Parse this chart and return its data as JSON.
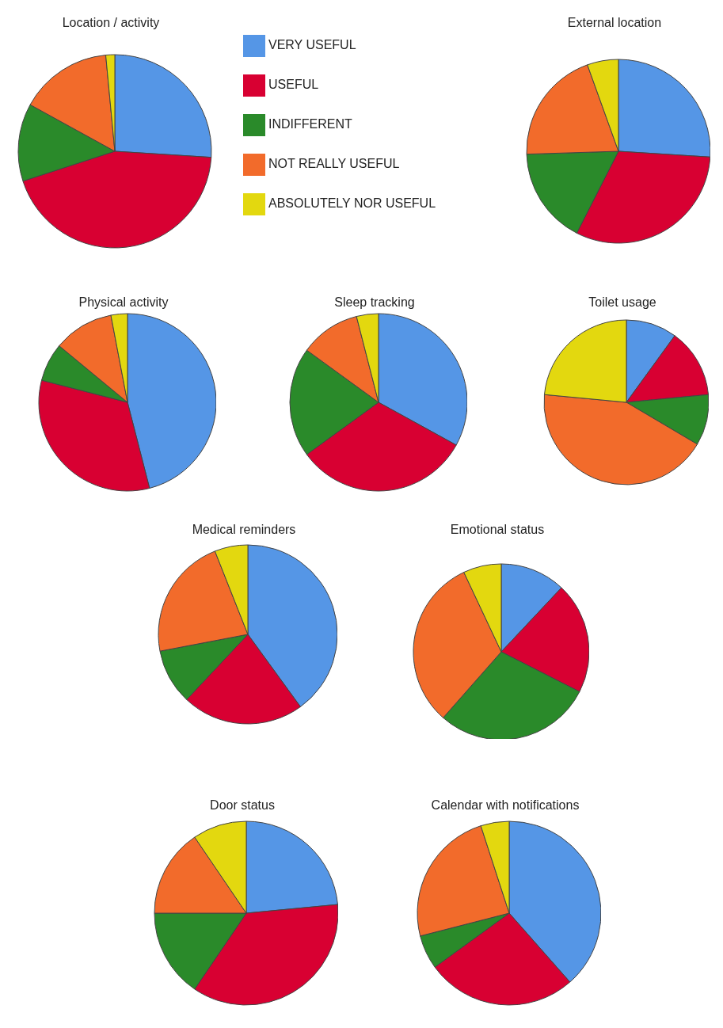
{
  "chart_data": [
    {
      "type": "pie",
      "title": "Location / activity",
      "categories": [
        "VERY USEFUL",
        "USEFUL",
        "INDIFFERENT",
        "NOT REALLY USEFUL",
        "ABSOLUTELY NOR USEFUL"
      ],
      "values": [
        26,
        44,
        13,
        15.5,
        1.5
      ],
      "colors": [
        "#5596e6",
        "#d80032",
        "#2a8a2a",
        "#f26b2b",
        "#e3d80f"
      ],
      "legend": "right"
    },
    {
      "type": "pie",
      "title": "External location",
      "categories": [
        null,
        null,
        null,
        null,
        null
      ],
      "values": [
        26,
        31.5,
        17,
        20,
        5.5
      ],
      "colors": [
        "#5596e6",
        "#d80032",
        "#2a8a2a",
        "#f26b2b",
        "#e3d80f"
      ]
    },
    {
      "type": "pie",
      "title": "Physical activity",
      "categories": [
        null,
        null,
        null,
        null,
        null
      ],
      "values": [
        46,
        33,
        7,
        11,
        3
      ],
      "colors": [
        "#5596e6",
        "#d80032",
        "#2a8a2a",
        "#f26b2b",
        "#e3d80f"
      ]
    },
    {
      "type": "pie",
      "title": "Sleep tracking",
      "categories": [
        null,
        null,
        null,
        null,
        null
      ],
      "values": [
        33,
        32,
        20,
        11,
        4
      ],
      "colors": [
        "#5596e6",
        "#d80032",
        "#2a8a2a",
        "#f26b2b",
        "#e3d80f"
      ]
    },
    {
      "type": "pie",
      "title": "Toilet usage",
      "categories": [
        null,
        null,
        null,
        null,
        null
      ],
      "values": [
        10,
        13.5,
        10,
        43,
        23.5
      ],
      "colors": [
        "#5596e6",
        "#d80032",
        "#2a8a2a",
        "#f26b2b",
        "#e3d80f"
      ]
    },
    {
      "type": "pie",
      "title": "Medical reminders",
      "categories": [
        null,
        null,
        null,
        null,
        null
      ],
      "values": [
        40,
        22,
        10,
        22,
        6
      ],
      "colors": [
        "#5596e6",
        "#d80032",
        "#2a8a2a",
        "#f26b2b",
        "#e3d80f"
      ]
    },
    {
      "type": "pie",
      "title": "Emotional status",
      "categories": [
        null,
        null,
        null,
        null,
        null
      ],
      "values": [
        12,
        20.5,
        29,
        31.5,
        7
      ],
      "colors": [
        "#5596e6",
        "#d80032",
        "#2a8a2a",
        "#f26b2b",
        "#e3d80f"
      ]
    },
    {
      "type": "pie",
      "title": "Door status",
      "categories": [
        null,
        null,
        null,
        null,
        null
      ],
      "values": [
        23.5,
        36,
        15.5,
        15.5,
        9.5
      ],
      "colors": [
        "#5596e6",
        "#d80032",
        "#2a8a2a",
        "#f26b2b",
        "#e3d80f"
      ]
    },
    {
      "type": "pie",
      "title": "Calendar with notifications",
      "categories": [
        null,
        null,
        null,
        null,
        null
      ],
      "values": [
        38.5,
        26.5,
        6,
        24,
        5
      ],
      "colors": [
        "#5596e6",
        "#d80032",
        "#2a8a2a",
        "#f26b2b",
        "#e3d80f"
      ]
    }
  ]
}
